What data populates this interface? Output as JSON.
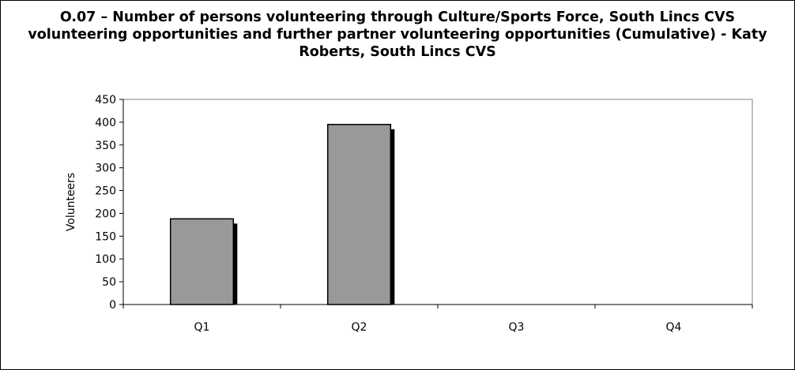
{
  "chart_data": {
    "type": "bar",
    "title": "O.07 – Number of persons volunteering through Culture/Sports Force, South Lincs CVS volunteering opportunities and further partner volunteering opportunities (Cumulative)  - Katy Roberts, South Lincs CVS",
    "xlabel": "",
    "ylabel": "Volunteers",
    "categories": [
      "Q1",
      "Q2",
      "Q3",
      "Q4"
    ],
    "values": [
      188,
      395,
      0,
      0
    ],
    "ylim": [
      0,
      450
    ],
    "yticks": [
      0,
      50,
      100,
      150,
      200,
      250,
      300,
      350,
      400,
      450
    ],
    "grid": false,
    "legend": "none",
    "colors": {
      "bar": "#999999",
      "bar_border": "#000000",
      "shadow": "#000000",
      "plot_border": "#808080"
    }
  }
}
